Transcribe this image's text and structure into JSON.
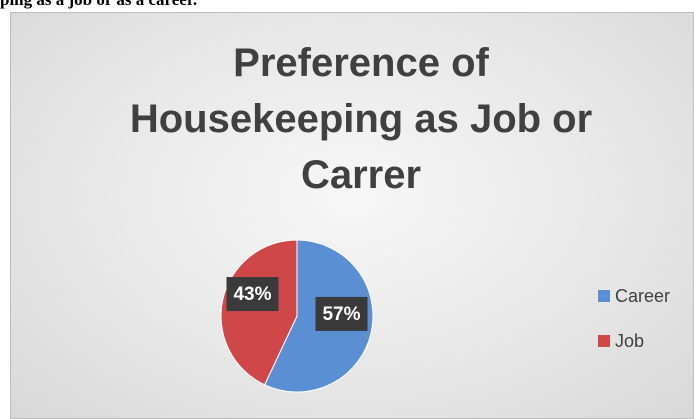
{
  "caption": "ping as a job or as a career.",
  "chart_data": {
    "type": "pie",
    "title": "Preference of Housekeeping as Job or Carrer",
    "categories": [
      "Career",
      "Job"
    ],
    "values": [
      57,
      43
    ],
    "value_labels": [
      "57%",
      "43%"
    ],
    "colors": [
      "#5b8fd3",
      "#d0474a"
    ],
    "legend": "right"
  }
}
